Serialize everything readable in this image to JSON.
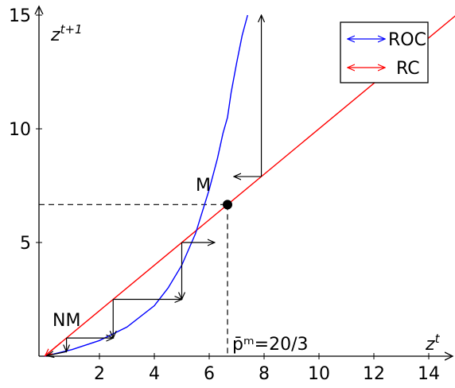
{
  "chart_data": {
    "type": "line",
    "xlabel": "z^t",
    "ylabel": "z^{t+1}",
    "xlim": [
      0,
      15
    ],
    "ylim": [
      0,
      15
    ],
    "x_ticks": [
      "2",
      "4",
      "6",
      "8",
      "10",
      "12",
      "14"
    ],
    "y_ticks": [
      "5",
      "10",
      "15"
    ],
    "grid": false,
    "legend_placement": "top-right",
    "series": [
      {
        "name": "ROC",
        "color": "#0000ff",
        "x": [
          0,
          1,
          2,
          3,
          4,
          4.5,
          5,
          5.5,
          6,
          6.3,
          6.5,
          6.667,
          6.8,
          7,
          7.2,
          7.4
        ],
        "y": [
          0,
          0.29,
          0.69,
          1.28,
          2.22,
          3.0,
          4.0,
          5.39,
          7.33,
          8.7,
          9.8,
          10.5,
          11.6,
          12.9,
          14.1,
          15.0
        ]
      },
      {
        "name": "RC",
        "color": "#ff0000",
        "x": [
          0,
          15
        ],
        "y": [
          0,
          15
        ]
      }
    ],
    "cobweb_steps": [
      [
        [
          0.8,
          0.8
        ],
        [
          0.8,
          0.2
        ]
      ],
      [
        [
          0.8,
          0.8
        ],
        [
          2.5,
          0.8
        ]
      ],
      [
        [
          2.5,
          2.5
        ],
        [
          2.5,
          0.8
        ]
      ],
      [
        [
          2.5,
          2.5
        ],
        [
          5,
          2.5
        ]
      ],
      [
        [
          5,
          5
        ],
        [
          5,
          2.5
        ]
      ],
      [
        [
          5,
          5
        ],
        [
          6.2,
          5
        ]
      ],
      [
        [
          7.9,
          7.9
        ],
        [
          6.9,
          7.9
        ]
      ],
      [
        [
          7.9,
          7.9
        ],
        [
          7.9,
          15
        ]
      ]
    ],
    "point_M": {
      "x": 6.667,
      "y": 6.667,
      "label": "M"
    },
    "annotations": {
      "nm_label": "NM",
      "pbar_label": "p̄ᵐ=20/3"
    }
  }
}
